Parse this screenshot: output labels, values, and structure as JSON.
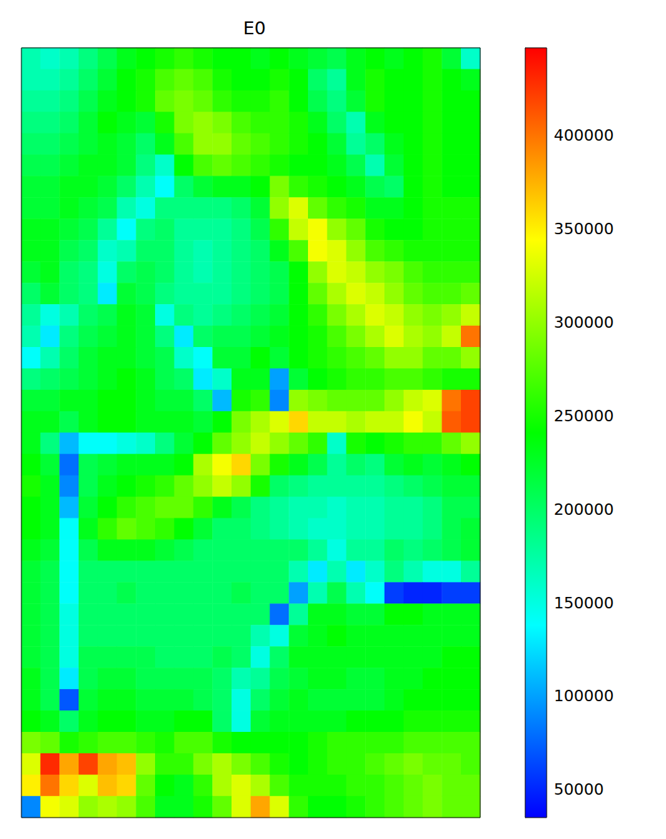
{
  "chart_data": {
    "type": "heatmap",
    "title": "E0",
    "tick_labels": false,
    "colorbar": {
      "range": [
        35000,
        447000
      ],
      "ticks": [
        50000,
        100000,
        150000,
        200000,
        250000,
        300000,
        350000,
        400000
      ],
      "colors": [
        "#0000ff",
        "#00ffff",
        "#00ff00",
        "#ffff00",
        "#ff0000"
      ]
    },
    "cells": [
      [
        170000,
        160000,
        170000,
        190000,
        210000,
        230000,
        240000,
        250000,
        260000,
        250000,
        240000,
        240000,
        230000,
        240000,
        230000,
        220000,
        210000,
        230000,
        240000,
        230000,
        240000,
        250000,
        220000,
        160000
      ],
      [
        170000,
        170000,
        180000,
        200000,
        220000,
        240000,
        250000,
        270000,
        280000,
        270000,
        250000,
        240000,
        240000,
        250000,
        240000,
        200000,
        180000,
        230000,
        250000,
        240000,
        240000,
        250000,
        240000,
        230000
      ],
      [
        180000,
        180000,
        190000,
        210000,
        230000,
        240000,
        250000,
        280000,
        290000,
        280000,
        260000,
        250000,
        250000,
        260000,
        240000,
        210000,
        190000,
        220000,
        250000,
        240000,
        240000,
        250000,
        240000,
        240000
      ],
      [
        190000,
        190000,
        200000,
        220000,
        240000,
        230000,
        220000,
        250000,
        290000,
        300000,
        290000,
        270000,
        260000,
        260000,
        250000,
        230000,
        200000,
        170000,
        230000,
        240000,
        240000,
        250000,
        240000,
        240000
      ],
      [
        200000,
        200000,
        210000,
        220000,
        230000,
        220000,
        200000,
        230000,
        270000,
        300000,
        300000,
        280000,
        270000,
        260000,
        250000,
        240000,
        220000,
        180000,
        200000,
        230000,
        240000,
        250000,
        240000,
        240000
      ],
      [
        210000,
        210000,
        220000,
        230000,
        230000,
        220000,
        190000,
        160000,
        240000,
        270000,
        280000,
        270000,
        260000,
        250000,
        240000,
        240000,
        230000,
        210000,
        170000,
        220000,
        240000,
        250000,
        240000,
        240000
      ],
      [
        220000,
        220000,
        230000,
        230000,
        220000,
        200000,
        170000,
        140000,
        200000,
        220000,
        230000,
        230000,
        240000,
        290000,
        260000,
        250000,
        240000,
        230000,
        210000,
        200000,
        240000,
        250000,
        240000,
        240000
      ],
      [
        220000,
        220000,
        230000,
        220000,
        210000,
        170000,
        150000,
        190000,
        190000,
        190000,
        190000,
        200000,
        220000,
        300000,
        330000,
        280000,
        260000,
        250000,
        230000,
        230000,
        240000,
        250000,
        250000,
        250000
      ],
      [
        230000,
        230000,
        220000,
        210000,
        180000,
        140000,
        190000,
        200000,
        180000,
        180000,
        180000,
        190000,
        210000,
        260000,
        320000,
        340000,
        300000,
        280000,
        250000,
        240000,
        240000,
        250000,
        250000,
        250000
      ],
      [
        230000,
        230000,
        210000,
        200000,
        160000,
        170000,
        200000,
        200000,
        180000,
        170000,
        180000,
        190000,
        200000,
        230000,
        270000,
        340000,
        330000,
        300000,
        270000,
        260000,
        250000,
        250000,
        250000,
        250000
      ],
      [
        220000,
        230000,
        200000,
        190000,
        150000,
        200000,
        210000,
        200000,
        180000,
        170000,
        180000,
        190000,
        200000,
        210000,
        240000,
        300000,
        330000,
        320000,
        300000,
        290000,
        270000,
        260000,
        260000,
        260000
      ],
      [
        200000,
        220000,
        200000,
        190000,
        130000,
        220000,
        210000,
        190000,
        180000,
        180000,
        180000,
        190000,
        200000,
        210000,
        240000,
        280000,
        310000,
        330000,
        320000,
        300000,
        280000,
        270000,
        270000,
        280000
      ],
      [
        180000,
        150000,
        170000,
        200000,
        210000,
        230000,
        220000,
        150000,
        190000,
        180000,
        190000,
        200000,
        210000,
        220000,
        240000,
        260000,
        290000,
        310000,
        330000,
        320000,
        300000,
        290000,
        300000,
        320000
      ],
      [
        170000,
        130000,
        190000,
        210000,
        220000,
        230000,
        220000,
        190000,
        130000,
        200000,
        210000,
        210000,
        220000,
        230000,
        240000,
        250000,
        270000,
        290000,
        310000,
        330000,
        310000,
        300000,
        320000,
        400000
      ],
      [
        140000,
        170000,
        200000,
        220000,
        230000,
        230000,
        220000,
        210000,
        160000,
        140000,
        220000,
        220000,
        240000,
        220000,
        240000,
        250000,
        260000,
        270000,
        280000,
        300000,
        300000,
        280000,
        280000,
        300000
      ],
      [
        190000,
        200000,
        210000,
        220000,
        230000,
        240000,
        230000,
        210000,
        200000,
        130000,
        160000,
        230000,
        230000,
        100000,
        220000,
        240000,
        250000,
        260000,
        260000,
        270000,
        270000,
        260000,
        250000,
        250000
      ],
      [
        220000,
        220000,
        230000,
        230000,
        240000,
        240000,
        230000,
        220000,
        220000,
        200000,
        110000,
        250000,
        260000,
        90000,
        300000,
        290000,
        280000,
        280000,
        280000,
        300000,
        320000,
        330000,
        400000,
        420000
      ],
      [
        230000,
        230000,
        210000,
        230000,
        240000,
        240000,
        230000,
        230000,
        230000,
        220000,
        240000,
        290000,
        310000,
        330000,
        360000,
        320000,
        320000,
        310000,
        320000,
        320000,
        340000,
        320000,
        410000,
        420000
      ],
      [
        230000,
        190000,
        110000,
        140000,
        140000,
        150000,
        160000,
        190000,
        220000,
        240000,
        280000,
        300000,
        320000,
        300000,
        280000,
        260000,
        160000,
        250000,
        240000,
        250000,
        260000,
        260000,
        280000,
        300000
      ],
      [
        240000,
        220000,
        80000,
        210000,
        220000,
        230000,
        230000,
        230000,
        240000,
        310000,
        340000,
        360000,
        290000,
        250000,
        230000,
        210000,
        180000,
        200000,
        190000,
        220000,
        230000,
        220000,
        230000,
        240000
      ],
      [
        250000,
        230000,
        90000,
        210000,
        230000,
        240000,
        250000,
        260000,
        280000,
        300000,
        320000,
        300000,
        250000,
        200000,
        190000,
        180000,
        180000,
        180000,
        180000,
        190000,
        200000,
        210000,
        220000,
        220000
      ],
      [
        240000,
        230000,
        110000,
        220000,
        240000,
        260000,
        270000,
        280000,
        280000,
        260000,
        230000,
        210000,
        190000,
        180000,
        170000,
        170000,
        160000,
        170000,
        170000,
        180000,
        180000,
        190000,
        210000,
        210000
      ],
      [
        240000,
        230000,
        140000,
        230000,
        260000,
        280000,
        270000,
        260000,
        240000,
        220000,
        200000,
        200000,
        190000,
        180000,
        170000,
        160000,
        160000,
        170000,
        170000,
        180000,
        180000,
        190000,
        210000,
        220000
      ],
      [
        230000,
        220000,
        140000,
        210000,
        230000,
        230000,
        230000,
        220000,
        210000,
        200000,
        200000,
        200000,
        200000,
        200000,
        200000,
        180000,
        150000,
        180000,
        180000,
        200000,
        190000,
        200000,
        210000,
        220000
      ],
      [
        220000,
        210000,
        140000,
        200000,
        200000,
        200000,
        200000,
        200000,
        200000,
        200000,
        200000,
        200000,
        200000,
        200000,
        170000,
        130000,
        170000,
        130000,
        160000,
        190000,
        170000,
        150000,
        150000,
        180000
      ],
      [
        220000,
        210000,
        140000,
        200000,
        200000,
        210000,
        200000,
        200000,
        200000,
        200000,
        200000,
        210000,
        200000,
        200000,
        100000,
        170000,
        210000,
        170000,
        140000,
        60000,
        50000,
        50000,
        60000,
        60000
      ],
      [
        220000,
        210000,
        150000,
        200000,
        200000,
        200000,
        200000,
        200000,
        200000,
        200000,
        200000,
        200000,
        200000,
        80000,
        180000,
        230000,
        230000,
        220000,
        220000,
        240000,
        240000,
        230000,
        230000,
        230000
      ],
      [
        220000,
        210000,
        150000,
        200000,
        200000,
        200000,
        200000,
        200000,
        200000,
        200000,
        200000,
        200000,
        170000,
        150000,
        220000,
        230000,
        240000,
        230000,
        230000,
        230000,
        230000,
        230000,
        230000,
        230000
      ],
      [
        220000,
        210000,
        150000,
        210000,
        210000,
        210000,
        210000,
        200000,
        200000,
        200000,
        210000,
        200000,
        150000,
        200000,
        230000,
        230000,
        230000,
        230000,
        230000,
        230000,
        230000,
        230000,
        240000,
        240000
      ],
      [
        230000,
        210000,
        130000,
        210000,
        220000,
        220000,
        210000,
        210000,
        210000,
        210000,
        200000,
        170000,
        180000,
        210000,
        220000,
        230000,
        230000,
        220000,
        220000,
        230000,
        230000,
        240000,
        240000,
        240000
      ],
      [
        230000,
        210000,
        70000,
        220000,
        230000,
        230000,
        220000,
        220000,
        220000,
        210000,
        200000,
        150000,
        200000,
        220000,
        230000,
        220000,
        220000,
        220000,
        220000,
        230000,
        240000,
        240000,
        240000,
        240000
      ],
      [
        240000,
        230000,
        200000,
        230000,
        240000,
        240000,
        230000,
        230000,
        240000,
        240000,
        200000,
        150000,
        220000,
        230000,
        230000,
        230000,
        230000,
        240000,
        240000,
        240000,
        250000,
        250000,
        250000,
        250000
      ],
      [
        290000,
        280000,
        250000,
        260000,
        270000,
        270000,
        260000,
        250000,
        270000,
        270000,
        250000,
        240000,
        240000,
        240000,
        240000,
        250000,
        260000,
        260000,
        260000,
        260000,
        270000,
        270000,
        270000,
        270000
      ],
      [
        330000,
        430000,
        380000,
        420000,
        380000,
        370000,
        300000,
        260000,
        260000,
        290000,
        310000,
        290000,
        270000,
        250000,
        240000,
        250000,
        260000,
        260000,
        270000,
        280000,
        290000,
        280000,
        280000,
        270000
      ],
      [
        350000,
        400000,
        360000,
        330000,
        370000,
        360000,
        280000,
        240000,
        230000,
        260000,
        310000,
        330000,
        310000,
        270000,
        250000,
        250000,
        250000,
        260000,
        260000,
        270000,
        280000,
        290000,
        280000,
        280000
      ],
      [
        90000,
        340000,
        330000,
        300000,
        310000,
        300000,
        270000,
        230000,
        230000,
        250000,
        280000,
        330000,
        380000,
        330000,
        260000,
        240000,
        240000,
        250000,
        260000,
        270000,
        280000,
        290000,
        280000,
        280000
      ]
    ]
  }
}
